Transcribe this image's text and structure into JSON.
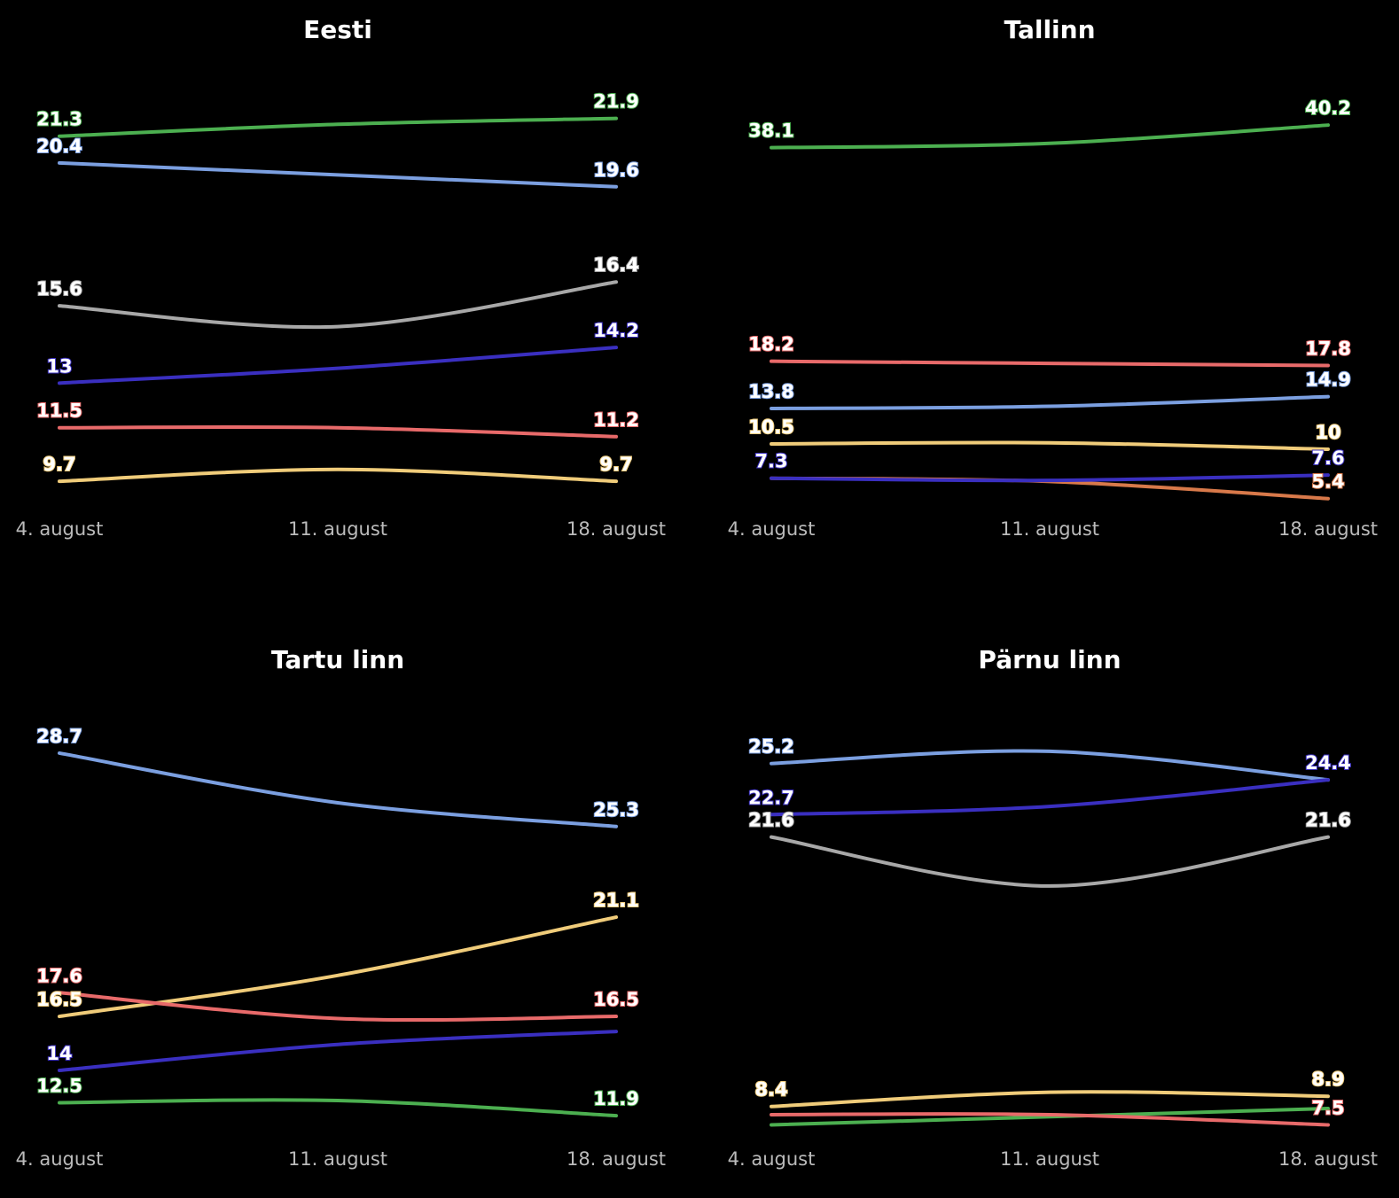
{
  "chart_data": [
    {
      "type": "line",
      "title": "Eesti",
      "x": [
        "4. august",
        "11. august",
        "18. august"
      ],
      "ylim": [
        8.9,
        22.9
      ],
      "series": [
        {
          "color": "#4caf50",
          "values": [
            21.3,
            21.7,
            21.9
          ],
          "value_labels": [
            "21.3",
            null,
            "21.9"
          ]
        },
        {
          "color": "#7b9fe0",
          "values": [
            20.4,
            20.0,
            19.6
          ],
          "value_labels": [
            "20.4",
            null,
            "19.6"
          ]
        },
        {
          "color": "#a8a8a8",
          "values": [
            15.6,
            14.9,
            16.4
          ],
          "value_labels": [
            "15.6",
            null,
            "16.4"
          ]
        },
        {
          "color": "#3a2fc0",
          "values": [
            13,
            13.5,
            14.2
          ],
          "value_labels": [
            "13",
            null,
            "14.2"
          ]
        },
        {
          "color": "#e86a6a",
          "values": [
            11.5,
            11.5,
            11.2
          ],
          "value_labels": [
            "11.5",
            null,
            "11.2"
          ]
        },
        {
          "color": "#f0cc7a",
          "values": [
            9.7,
            10.1,
            9.7
          ],
          "value_labels": [
            "9.7",
            null,
            "9.7"
          ]
        }
      ]
    },
    {
      "type": "line",
      "title": "Tallinn",
      "x": [
        "4. august",
        "11. august",
        "18. august"
      ],
      "ylim": [
        4.8,
        43.6
      ],
      "series": [
        {
          "color": "#4caf50",
          "values": [
            38.1,
            38.5,
            40.2
          ],
          "value_labels": [
            "38.1",
            null,
            "40.2"
          ]
        },
        {
          "color": "#e86a6a",
          "values": [
            18.2,
            18.0,
            17.8
          ],
          "value_labels": [
            "18.2",
            null,
            "17.8"
          ]
        },
        {
          "color": "#7b9fe0",
          "values": [
            13.8,
            14.0,
            14.9
          ],
          "value_labels": [
            "13.8",
            null,
            "14.9"
          ]
        },
        {
          "color": "#f0cc7a",
          "values": [
            10.5,
            10.6,
            10
          ],
          "value_labels": [
            "10.5",
            null,
            "10"
          ]
        },
        {
          "color": "#d8794a",
          "values": [
            7.3,
            7.0,
            5.4
          ],
          "value_labels": [
            null,
            null,
            "5.4"
          ]
        },
        {
          "color": "#3a2fc0",
          "values": [
            7.3,
            7.1,
            7.6
          ],
          "value_labels": [
            "7.3",
            null,
            "7.6"
          ]
        }
      ]
    },
    {
      "type": "line",
      "title": "Tartu linn",
      "x": [
        "4. august",
        "11. august",
        "18. august"
      ],
      "ylim": [
        11.0,
        30.3
      ],
      "series": [
        {
          "color": "#7b9fe0",
          "values": [
            28.7,
            26.4,
            25.3
          ],
          "value_labels": [
            "28.7",
            null,
            "25.3"
          ]
        },
        {
          "color": "#f0cc7a",
          "values": [
            16.5,
            18.4,
            21.1
          ],
          "value_labels": [
            "16.5",
            null,
            "21.1"
          ]
        },
        {
          "color": "#e86a6a",
          "values": [
            17.6,
            16.4,
            16.5
          ],
          "value_labels": [
            "17.6",
            null,
            "16.5"
          ]
        },
        {
          "color": "#3a2fc0",
          "values": [
            14,
            15.2,
            15.8
          ],
          "value_labels": [
            "14",
            null,
            null
          ]
        },
        {
          "color": "#4caf50",
          "values": [
            12.5,
            12.6,
            11.9
          ],
          "value_labels": [
            "12.5",
            null,
            "11.9"
          ]
        }
      ]
    },
    {
      "type": "line",
      "title": "Pärnu linn",
      "x": [
        "4. august",
        "11. august",
        "18. august"
      ],
      "ylim": [
        7.0,
        27.4
      ],
      "series": [
        {
          "color": "#7b9fe0",
          "values": [
            25.2,
            25.8,
            24.4
          ],
          "value_labels": [
            "25.2",
            null,
            null
          ]
        },
        {
          "color": "#3a2fc0",
          "values": [
            22.7,
            23.1,
            24.4
          ],
          "value_labels": [
            "22.7",
            null,
            "24.4"
          ]
        },
        {
          "color": "#a8a8a8",
          "values": [
            21.6,
            19.2,
            21.6
          ],
          "value_labels": [
            "21.6",
            null,
            "21.6"
          ]
        },
        {
          "color": "#f0cc7a",
          "values": [
            8.4,
            9.1,
            8.9
          ],
          "value_labels": [
            "8.4",
            null,
            "8.9"
          ]
        },
        {
          "color": "#4caf50",
          "values": [
            7.5,
            7.9,
            8.3
          ],
          "value_labels": [
            null,
            null,
            null
          ]
        },
        {
          "color": "#e86a6a",
          "values": [
            8.0,
            8.0,
            7.5
          ],
          "value_labels": [
            null,
            null,
            "7.5"
          ]
        }
      ]
    }
  ]
}
